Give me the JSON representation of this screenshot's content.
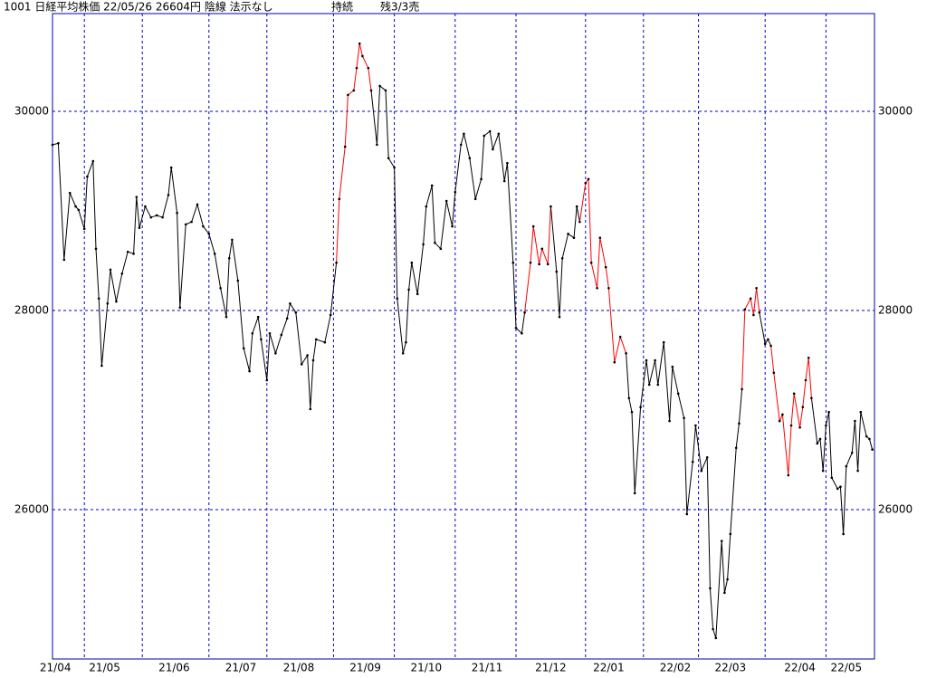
{
  "chart_data": {
    "type": "line",
    "title": "1001 日経平均株価 22/05/26 26604円 陰線 法示なし",
    "status": "持続",
    "signal": "残3/3売",
    "x": [
      0,
      2,
      4,
      6,
      8,
      9,
      11,
      12,
      14,
      15,
      16,
      17,
      19,
      20,
      22,
      24,
      26,
      28,
      29,
      30,
      32,
      34,
      36,
      38,
      40,
      41,
      43,
      44,
      46,
      48,
      50,
      52,
      54,
      56,
      58,
      60,
      61,
      62,
      64,
      66,
      68,
      69,
      71,
      72,
      74,
      75,
      77,
      79,
      81,
      82,
      84,
      86,
      88,
      89,
      90,
      91,
      94,
      96,
      98,
      99,
      101,
      102,
      104,
      105,
      106,
      107,
      109,
      110,
      112,
      113,
      115,
      116,
      118,
      119,
      121,
      122,
      123,
      124,
      126,
      128,
      129,
      131,
      132,
      134,
      136,
      138,
      139,
      141,
      142,
      144,
      146,
      148,
      149,
      151,
      152,
      154,
      156,
      157,
      159,
      160,
      162,
      163,
      165,
      166,
      168,
      169,
      171,
      172,
      174,
      175,
      176,
      178,
      180,
      181,
      182,
      184,
      185,
      186,
      188,
      189,
      191,
      192,
      194,
      196,
      198,
      199,
      200,
      201,
      203,
      205,
      206,
      208,
      209,
      211,
      213,
      214,
      216,
      218,
      219,
      221,
      222,
      224,
      226,
      227,
      228,
      229,
      231,
      232,
      233,
      234,
      236,
      237,
      238,
      239,
      241,
      242,
      243,
      244,
      246,
      247,
      248,
      249,
      251,
      252,
      254,
      255,
      256,
      258,
      259,
      260,
      261,
      262,
      264,
      265,
      266,
      267,
      268,
      269,
      271,
      272,
      273,
      274,
      276,
      277,
      278,
      279,
      281,
      282,
      283
    ],
    "values": [
      29664,
      29680,
      28510,
      29180,
      29045,
      29010,
      28820,
      29345,
      29500,
      28620,
      28120,
      27445,
      28070,
      28410,
      28090,
      28370,
      28590,
      28570,
      29140,
      28830,
      29045,
      28935,
      28955,
      28935,
      29160,
      29435,
      28980,
      28030,
      28865,
      28890,
      29065,
      28845,
      28770,
      28570,
      28225,
      27935,
      28525,
      28710,
      28300,
      27620,
      27390,
      27770,
      27935,
      27710,
      27300,
      27770,
      27570,
      27755,
      27920,
      28070,
      27980,
      27460,
      27550,
      27010,
      27500,
      27710,
      27680,
      27955,
      28480,
      29120,
      29645,
      30165,
      30210,
      30435,
      30680,
      30555,
      30435,
      30210,
      29665,
      30255,
      30210,
      29530,
      29435,
      28120,
      27570,
      27680,
      28210,
      28480,
      28165,
      28665,
      29045,
      29255,
      28680,
      28620,
      29100,
      28845,
      29190,
      29665,
      29775,
      29530,
      29120,
      29320,
      29755,
      29800,
      29620,
      29775,
      29300,
      29480,
      28480,
      27825,
      27770,
      27980,
      28480,
      28845,
      28465,
      28620,
      28465,
      29045,
      28390,
      27935,
      28525,
      28770,
      28730,
      29045,
      28890,
      29280,
      29320,
      28480,
      28225,
      28730,
      28435,
      28225,
      27480,
      27735,
      27570,
      27120,
      26980,
      26165,
      27030,
      27500,
      27255,
      27500,
      27255,
      27680,
      26890,
      27435,
      27165,
      26920,
      25955,
      26480,
      26845,
      26390,
      26525,
      25210,
      24800,
      24710,
      25685,
      25165,
      25300,
      25755,
      26620,
      26865,
      27210,
      28010,
      28120,
      27955,
      28225,
      27980,
      27665,
      27710,
      27645,
      27375,
      26890,
      26955,
      26345,
      26845,
      27165,
      26825,
      27030,
      27300,
      27525,
      27120,
      26665,
      26710,
      26390,
      26845,
      26980,
      26320,
      26210,
      26230,
      25755,
      26435,
      26570,
      26890,
      26390,
      26980,
      26735,
      26710,
      26604
    ],
    "color": "#000000",
    "highlight_color": "#ff0000",
    "highlight_spans": [
      [
        98,
        110
      ],
      [
        163,
        172
      ],
      [
        182,
        198
      ],
      [
        238,
        244
      ],
      [
        248,
        262
      ]
    ],
    "xlim": [
      0,
      283.75
    ],
    "xticks": [
      {
        "value": 1,
        "label": "21/04"
      },
      {
        "value": 18,
        "label": "21/05"
      },
      {
        "value": 42,
        "label": "21/06"
      },
      {
        "value": 65,
        "label": "21/07"
      },
      {
        "value": 85,
        "label": "21/08"
      },
      {
        "value": 108,
        "label": "21/09"
      },
      {
        "value": 129,
        "label": "21/10"
      },
      {
        "value": 150,
        "label": "21/11"
      },
      {
        "value": 172,
        "label": "21/12"
      },
      {
        "value": 192,
        "label": "22/01"
      },
      {
        "value": 215,
        "label": "22/02"
      },
      {
        "value": 234,
        "label": "22/03"
      },
      {
        "value": 258,
        "label": "22/04"
      },
      {
        "value": 274,
        "label": "22/05"
      }
    ],
    "xgrid": [
      11,
      31,
      54,
      74,
      97,
      118,
      139,
      160,
      184,
      204,
      223,
      246,
      267
    ],
    "ylim": [
      24500,
      30982
    ],
    "yticks": [
      26000,
      28000,
      30000
    ],
    "grid": true,
    "grid_color": "#0000cc",
    "frame_color": "#0000aa"
  }
}
